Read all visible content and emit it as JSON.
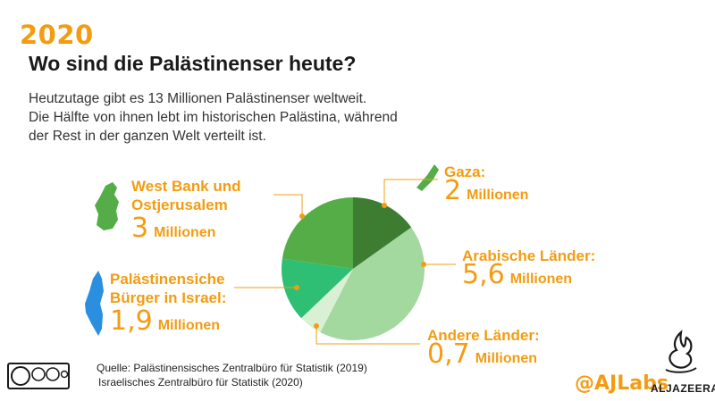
{
  "header": {
    "year": "2020",
    "title": "Wo sind die Palästinenser heute?",
    "intro_lines": [
      "Heutzutage gibt es 13 Millionen Palästinenser weltweit.",
      "Die Hälfte von ihnen lebt im historischen Palästina, während",
      "der Rest in der ganzen Welt verteilt ist."
    ]
  },
  "chart_data": {
    "type": "pie",
    "unit": "Millionen",
    "slices": [
      {
        "label_lines": [
          "Gaza:"
        ],
        "value": 2,
        "value_text": "2",
        "color": "#3d7d32"
      },
      {
        "label_lines": [
          "Arabische Länder:"
        ],
        "value": 5.6,
        "value_text": "5,6",
        "color": "#a3d89e"
      },
      {
        "label_lines": [
          "Andere Länder:"
        ],
        "value": 0.7,
        "value_text": "0,7",
        "color": "#d9f0d5"
      },
      {
        "label_lines": [
          "Palästinensiche",
          "Bürger in Israel:"
        ],
        "value": 1.9,
        "value_text": "1,9",
        "color": "#2fbf74"
      },
      {
        "label_lines": [
          "West Bank und",
          "Ostjerusalem"
        ],
        "value": 3,
        "value_text": "3",
        "color": "#55ad47"
      }
    ],
    "colors": {
      "accent": "#f39c12",
      "leader": "#f39c12"
    }
  },
  "source": {
    "lines": [
      "Quelle: Palästinensisches Zentralbüro für Statistik (2019)",
      "Israelisches Zentralbüro für Statistik (2020)"
    ]
  },
  "branding": {
    "handle": "@AJLabs",
    "name": "ALJAZEERA",
    "license_icon": "cc-by-nc-sa-icon",
    "logo_icon": "aljazeera-calligraphy-logo-icon"
  }
}
